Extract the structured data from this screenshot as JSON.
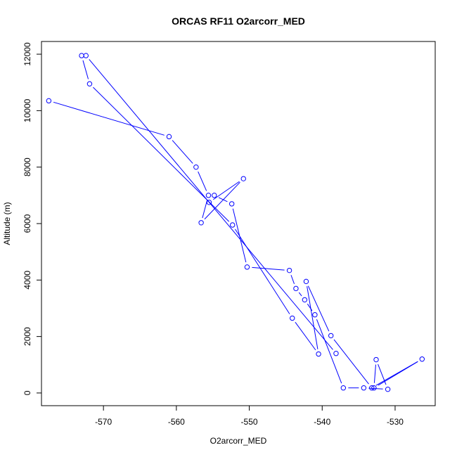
{
  "chart_data": {
    "type": "scatter",
    "title": "ORCAS RF11 O2arcorr_MED",
    "xlabel": "O2arcorr_MED",
    "ylabel": "Altitude (m)",
    "xlim": [
      -578.5,
      -524.5
    ],
    "ylim": [
      -450,
      12450
    ],
    "xticks": [
      -570,
      -560,
      -550,
      -540,
      -530
    ],
    "yticks": [
      0,
      2000,
      4000,
      6000,
      8000,
      10000,
      12000
    ],
    "grid": false,
    "legend": "none",
    "color": "#0000ff",
    "series": [
      {
        "style": "points-connected-with-gaps",
        "x": [
          -577.5,
          -561.0,
          -557.3,
          -555.6,
          -556.6,
          -550.8,
          -555.5,
          -554.8,
          -552.4,
          -550.3,
          -544.5,
          -543.6,
          -542.4,
          -541.0,
          -537.1,
          -534.3,
          -531.0,
          -532.6,
          -532.9,
          -526.3,
          -533.2,
          -538.8,
          -542.2,
          -540.5,
          -544.1,
          -552.3,
          -571.9,
          -573.0,
          -572.4,
          -538.1
        ],
        "y": [
          10350,
          9080,
          8000,
          7000,
          6030,
          7590,
          6750,
          7000,
          6700,
          4460,
          4340,
          3700,
          3300,
          2770,
          180,
          180,
          130,
          1180,
          180,
          1200,
          180,
          2030,
          3950,
          1380,
          2650,
          5950,
          10950,
          11950,
          11950,
          1400
        ]
      }
    ]
  }
}
